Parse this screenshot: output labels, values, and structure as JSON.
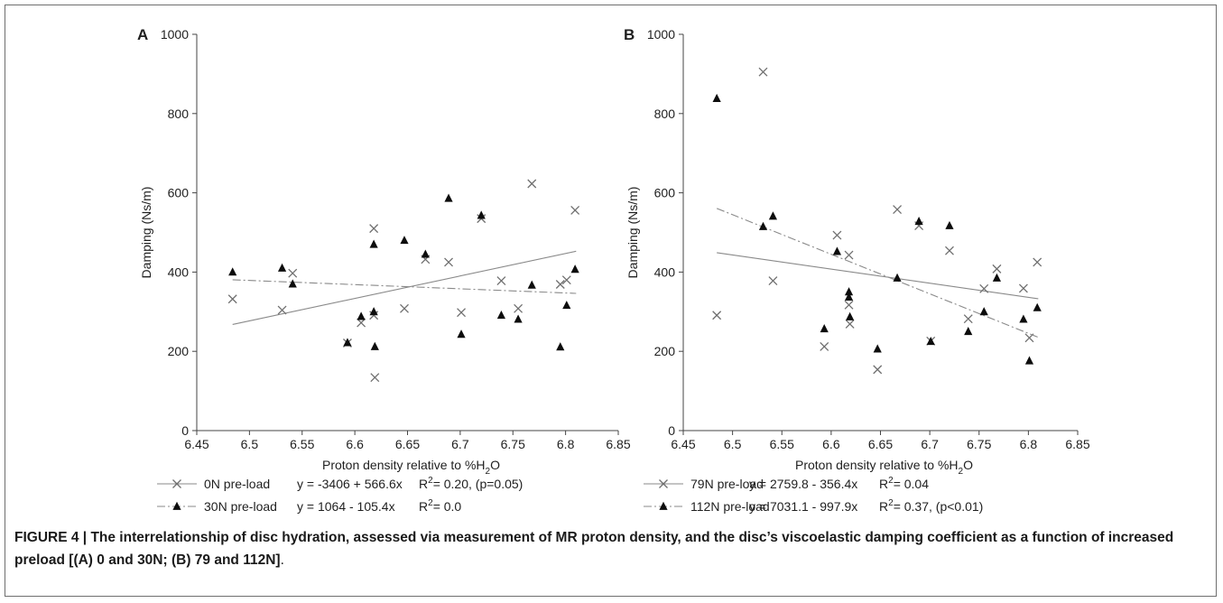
{
  "chart_data": [
    {
      "type": "scatter",
      "panel_label": "A",
      "xlabel": "Proton density relative to %H",
      "xlabel_sub": "2",
      "xlabel_tail": "O",
      "ylabel": "Damping (Ns/m)",
      "xlim": [
        6.45,
        6.85
      ],
      "ylim": [
        0,
        1000
      ],
      "xticks": [
        "6.45",
        "6.5",
        "6.55",
        "6.6",
        "6.65",
        "6.7",
        "6.75",
        "6.8",
        "6.85"
      ],
      "yticks": [
        "0",
        "200",
        "400",
        "600",
        "800",
        "1000"
      ],
      "series": [
        {
          "name": "0N pre-load",
          "marker": "cross",
          "line": "solid",
          "equation": "y = -3406 + 566.6x",
          "r2_label": "R",
          "r2_value": "= 0.20, (p=0.05)",
          "fit": {
            "intercept": -3406,
            "slope": 566.6,
            "x_range": [
              6.484,
              6.81
            ]
          },
          "points": [
            [
              6.484,
              332
            ],
            [
              6.531,
              304
            ],
            [
              6.541,
              397
            ],
            [
              6.593,
              221
            ],
            [
              6.606,
              272
            ],
            [
              6.618,
              510
            ],
            [
              6.618,
              291
            ],
            [
              6.619,
              134
            ],
            [
              6.647,
              308
            ],
            [
              6.667,
              432
            ],
            [
              6.689,
              425
            ],
            [
              6.701,
              298
            ],
            [
              6.72,
              535
            ],
            [
              6.739,
              378
            ],
            [
              6.755,
              308
            ],
            [
              6.768,
              623
            ],
            [
              6.795,
              369
            ],
            [
              6.801,
              380
            ],
            [
              6.809,
              556
            ]
          ]
        },
        {
          "name": "30N pre-load",
          "marker": "triangle",
          "line": "dashdot",
          "equation": "y = 1064 - 105.4x",
          "r2_label": "R",
          "r2_value": "= 0.0",
          "fit": {
            "intercept": 1064,
            "slope": -105.4,
            "x_range": [
              6.484,
              6.81
            ]
          },
          "points": [
            [
              6.484,
              400
            ],
            [
              6.531,
              410
            ],
            [
              6.541,
              370
            ],
            [
              6.593,
              222
            ],
            [
              6.606,
              288
            ],
            [
              6.618,
              470
            ],
            [
              6.618,
              300
            ],
            [
              6.619,
              212
            ],
            [
              6.647,
              480
            ],
            [
              6.667,
              445
            ],
            [
              6.689,
              586
            ],
            [
              6.701,
              243
            ],
            [
              6.72,
              543
            ],
            [
              6.739,
              291
            ],
            [
              6.755,
              281
            ],
            [
              6.768,
              367
            ],
            [
              6.795,
              211
            ],
            [
              6.801,
              316
            ],
            [
              6.809,
              407
            ]
          ]
        }
      ]
    },
    {
      "type": "scatter",
      "panel_label": "B",
      "xlabel": "Proton density relative to %H",
      "xlabel_sub": "2",
      "xlabel_tail": "O",
      "ylabel": "Damping (Ns/m)",
      "xlim": [
        6.45,
        6.85
      ],
      "ylim": [
        0,
        1000
      ],
      "xticks": [
        "6.45",
        "6.5",
        "6.55",
        "6.6",
        "6.65",
        "6.7",
        "6.75",
        "6.8",
        "6.85"
      ],
      "yticks": [
        "0",
        "200",
        "400",
        "600",
        "800",
        "1000"
      ],
      "series": [
        {
          "name": "79N pre-load",
          "marker": "cross",
          "line": "solid",
          "equation": "y = 2759.8 - 356.4x",
          "r2_label": "R",
          "r2_value": "= 0.04",
          "fit": {
            "intercept": 2759.8,
            "slope": -356.4,
            "x_range": [
              6.484,
              6.81
            ]
          },
          "points": [
            [
              6.484,
              291
            ],
            [
              6.531,
              905
            ],
            [
              6.541,
              378
            ],
            [
              6.593,
              212
            ],
            [
              6.606,
              493
            ],
            [
              6.618,
              443
            ],
            [
              6.618,
              317
            ],
            [
              6.619,
              269
            ],
            [
              6.647,
              154
            ],
            [
              6.667,
              558
            ],
            [
              6.689,
              517
            ],
            [
              6.701,
              226
            ],
            [
              6.72,
              454
            ],
            [
              6.739,
              282
            ],
            [
              6.755,
              358
            ],
            [
              6.768,
              408
            ],
            [
              6.795,
              359
            ],
            [
              6.801,
              234
            ],
            [
              6.809,
              425
            ]
          ]
        },
        {
          "name": "112N pre-load",
          "marker": "triangle",
          "line": "dashdot",
          "equation": "y = 7031.1 - 997.9x",
          "r2_label": "R",
          "r2_value": "= 0.37, (p<0.01)",
          "fit": {
            "intercept": 7031.1,
            "slope": -997.9,
            "x_range": [
              6.484,
              6.81
            ]
          },
          "points": [
            [
              6.484,
              838
            ],
            [
              6.531,
              515
            ],
            [
              6.541,
              541
            ],
            [
              6.593,
              257
            ],
            [
              6.606,
              452
            ],
            [
              6.618,
              350
            ],
            [
              6.618,
              337
            ],
            [
              6.619,
              287
            ],
            [
              6.647,
              206
            ],
            [
              6.667,
              385
            ],
            [
              6.689,
              528
            ],
            [
              6.701,
              225
            ],
            [
              6.72,
              517
            ],
            [
              6.739,
              250
            ],
            [
              6.755,
              300
            ],
            [
              6.768,
              385
            ],
            [
              6.795,
              281
            ],
            [
              6.801,
              176
            ],
            [
              6.809,
              310
            ]
          ]
        }
      ]
    }
  ],
  "caption": {
    "prefix": "FIGURE 4 | ",
    "text": "The interrelationship of disc hydration, assessed via measurement of MR proton density, and the disc’s viscoelastic damping coefficient as a function of increased preload [(A) 0 and 30N; (B) 79 and 112N]",
    "end": "."
  }
}
